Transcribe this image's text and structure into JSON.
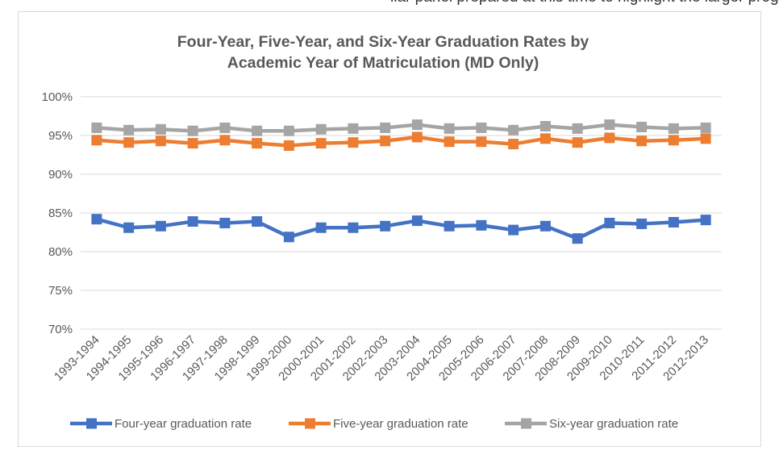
{
  "page": {
    "top_clip_text": "ilar panel prepared at this time to highlight the larger programs"
  },
  "chart_data": {
    "type": "line",
    "title": "Four-Year, Five-Year, and Six-Year Graduation Rates by Academic Year of Matriculation (MD Only)",
    "title_lines": [
      "Four-Year, Five-Year, and Six-Year Graduation Rates by",
      "Academic Year of Matriculation (MD Only)"
    ],
    "xlabel": "",
    "ylabel": "",
    "categories": [
      "1993-1994",
      "1994-1995",
      "1995-1996",
      "1996-1997",
      "1997-1998",
      "1998-1999",
      "1999-2000",
      "2000-2001",
      "2001-2002",
      "2002-2003",
      "2003-2004",
      "2004-2005",
      "2005-2006",
      "2006-2007",
      "2007-2008",
      "2008-2009",
      "2009-2010",
      "2010-2011",
      "2011-2012",
      "2012-2013"
    ],
    "ylim": [
      70,
      100
    ],
    "yticks": [
      70,
      75,
      80,
      85,
      90,
      95,
      100
    ],
    "ytick_labels": [
      "70%",
      "75%",
      "80%",
      "85%",
      "90%",
      "95%",
      "100%"
    ],
    "grid": true,
    "legend_position": "bottom",
    "series": [
      {
        "name": "Four-year graduation rate",
        "color": "#4472c4",
        "values": [
          84.2,
          83.1,
          83.3,
          83.9,
          83.7,
          83.9,
          81.9,
          83.1,
          83.1,
          83.3,
          84.0,
          83.3,
          83.4,
          82.8,
          83.3,
          81.7,
          83.7,
          83.6,
          83.8,
          84.1
        ]
      },
      {
        "name": "Five-year graduation rate",
        "color": "#ed7d31",
        "values": [
          94.4,
          94.1,
          94.3,
          94.0,
          94.4,
          94.0,
          93.7,
          94.0,
          94.1,
          94.3,
          94.8,
          94.2,
          94.2,
          93.9,
          94.6,
          94.1,
          94.7,
          94.3,
          94.4,
          94.6
        ]
      },
      {
        "name": "Six-year graduation rate",
        "color": "#a5a5a5",
        "values": [
          96.0,
          95.7,
          95.8,
          95.6,
          96.0,
          95.6,
          95.6,
          95.8,
          95.9,
          96.0,
          96.4,
          95.9,
          96.0,
          95.7,
          96.2,
          95.9,
          96.4,
          96.1,
          95.9,
          96.0
        ]
      }
    ]
  }
}
